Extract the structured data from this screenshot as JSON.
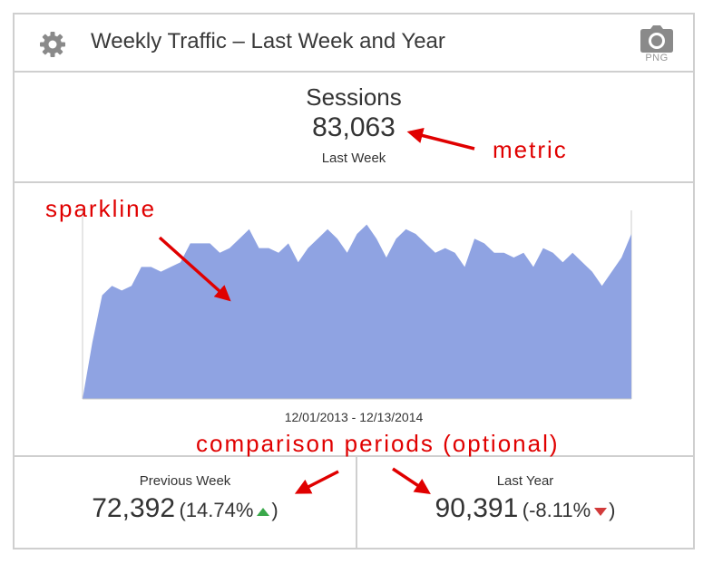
{
  "header": {
    "title": "Weekly Traffic – Last Week and Year",
    "export_label": "PNG",
    "icons": {
      "settings": "gear-icon",
      "export": "camera-icon"
    }
  },
  "metric": {
    "label": "Sessions",
    "value": "83,063",
    "period": "Last Week"
  },
  "sparkline": {
    "date_range": "12/01/2013 - 12/13/2014",
    "fill_color": "#8fa3e2",
    "chart_data": {
      "type": "area",
      "values": [
        0,
        12,
        22,
        24,
        23,
        24,
        28,
        28,
        27,
        28,
        29,
        33,
        33,
        33,
        31,
        32,
        34,
        36,
        32,
        32,
        31,
        33,
        29,
        32,
        34,
        36,
        34,
        31,
        35,
        37,
        34,
        30,
        34,
        36,
        35,
        33,
        31,
        32,
        31,
        28,
        34,
        33,
        31,
        31,
        30,
        31,
        28,
        32,
        31,
        29,
        31,
        29,
        27,
        24,
        27,
        30,
        35
      ]
    }
  },
  "comparisons": [
    {
      "label": "Previous Week",
      "value": "72,392",
      "open": "(",
      "pct": "14.74%",
      "close": ")",
      "trend": "up"
    },
    {
      "label": "Last Year",
      "value": "90,391",
      "open": "(",
      "pct": "-8.11%",
      "close": ")",
      "trend": "down"
    }
  ],
  "annotations": {
    "metric": "metric",
    "sparkline": "sparkline",
    "comparison": "comparison periods (optional)",
    "color": "#e00000"
  }
}
